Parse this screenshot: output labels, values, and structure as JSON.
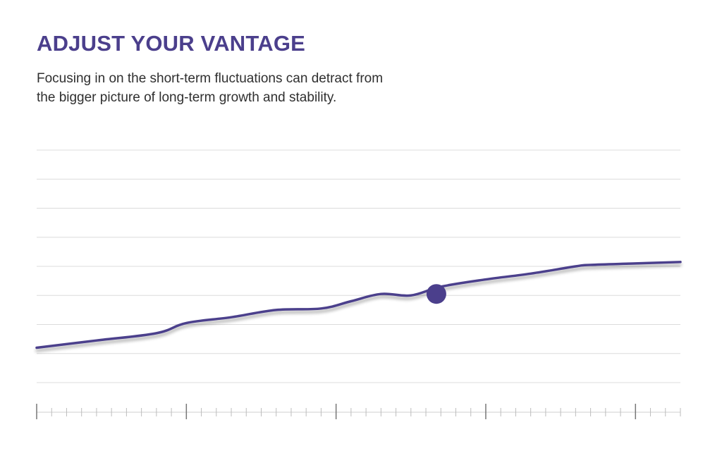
{
  "title": "ADJUST YOUR VANTAGE",
  "subtitle_lines": [
    "Focusing in on the short-term fluctuations can detract from",
    "the bigger picture of long-term growth and stability."
  ],
  "colors": {
    "line": "#4b3f8c",
    "marker": "#4b3f8c",
    "gridline": "#dcdcdc",
    "axis": "#777777"
  },
  "chart_data": {
    "type": "line",
    "title": "",
    "xlabel": "",
    "ylabel": "",
    "grid": true,
    "gridline_count": 9,
    "ylim": [
      0,
      8
    ],
    "xlim": [
      0,
      43
    ],
    "major_tick_every": 10,
    "series": [
      {
        "x": [
          0,
          4,
          8,
          10,
          13,
          16,
          19,
          21,
          23,
          25,
          27,
          30,
          33,
          36,
          37,
          40,
          43
        ],
        "values": [
          1.2,
          1.45,
          1.7,
          2.05,
          2.25,
          2.5,
          2.55,
          2.8,
          3.05,
          3.0,
          3.3,
          3.55,
          3.75,
          4.0,
          4.05,
          4.1,
          4.15
        ]
      }
    ],
    "highlight_point": {
      "x": 26.7,
      "y": 3.05
    }
  }
}
